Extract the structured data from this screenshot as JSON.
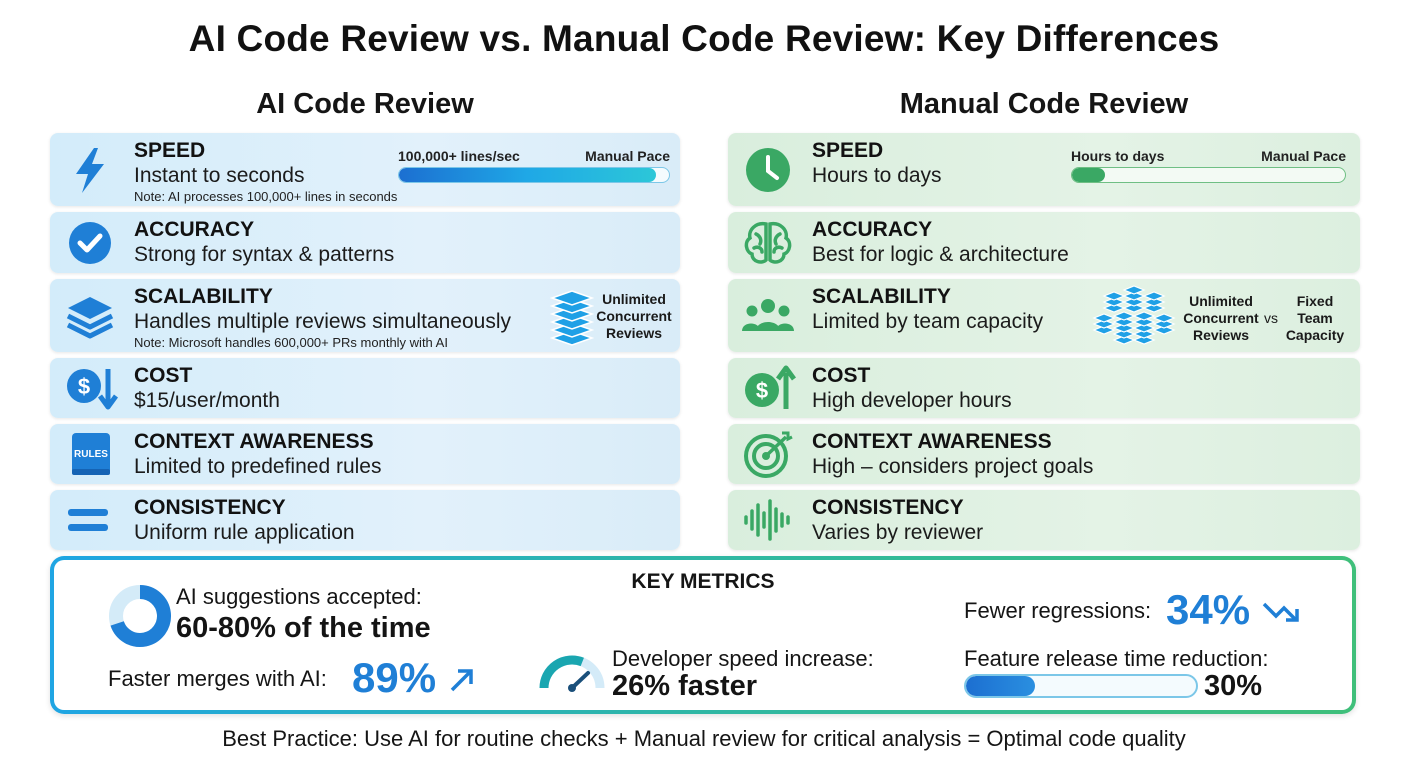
{
  "title": "AI Code Review vs. Manual Code Review: Key Differences",
  "ai_column": {
    "heading": "AI Code Review",
    "rows": [
      {
        "label": "SPEED",
        "value": "Instant to seconds",
        "note": "Note: AI processes 100,000+ lines in seconds",
        "bar": {
          "left_label": "100,000+ lines/sec",
          "right_label": "Manual Pace",
          "fill": 0.95
        }
      },
      {
        "label": "ACCURACY",
        "value": "Strong for syntax & patterns"
      },
      {
        "label": "SCALABILITY",
        "value": "Handles multiple reviews simultaneously",
        "note": "Note: Microsoft handles 600,000+ PRs monthly with AI",
        "stack_label": "Unlimited Concurrent Reviews"
      },
      {
        "label": "COST",
        "value": "$15/user/month"
      },
      {
        "label": "CONTEXT AWARENESS",
        "value": "Limited to predefined rules",
        "icon_text": "RULES"
      },
      {
        "label": "CONSISTENCY",
        "value": "Uniform rule application"
      }
    ]
  },
  "manual_column": {
    "heading": "Manual Code Review",
    "rows": [
      {
        "label": "SPEED",
        "value": "Hours to days",
        "bar": {
          "left_label": "Hours to days",
          "right_label": "Manual Pace",
          "fill": 0.12
        }
      },
      {
        "label": "ACCURACY",
        "value": "Best for logic & architecture"
      },
      {
        "label": "SCALABILITY",
        "value": "Limited by team capacity",
        "stack_label_left": "Unlimited Concurrent Reviews",
        "vs": "vs",
        "stack_label_right": "Fixed Team Capacity"
      },
      {
        "label": "COST",
        "value": "High developer hours"
      },
      {
        "label": "CONTEXT AWARENESS",
        "value": "High – considers project goals"
      },
      {
        "label": "CONSISTENCY",
        "value": "Varies by reviewer"
      }
    ]
  },
  "metrics": {
    "title": "KEY METRICS",
    "accepted_label": "AI suggestions accepted:",
    "accepted_value": "60-80% of the time",
    "accepted_ring_fraction": 0.7,
    "merges_label": "Faster merges with AI:",
    "merges_value": "89%",
    "speed_label": "Developer speed increase:",
    "speed_value": "26% faster",
    "speed_gauge_fraction": 0.26,
    "regressions_label": "Fewer regressions:",
    "regressions_value": "34%",
    "release_label": "Feature release time reduction:",
    "release_value": "30%",
    "release_fill": 0.3
  },
  "footer": "Best Practice: Use AI for routine checks + Manual review for critical analysis = Optimal code quality",
  "colors": {
    "ai_blue": "#1f7fd6",
    "manual_green": "#3aa864",
    "accent_blue": "#1f7fd6"
  }
}
